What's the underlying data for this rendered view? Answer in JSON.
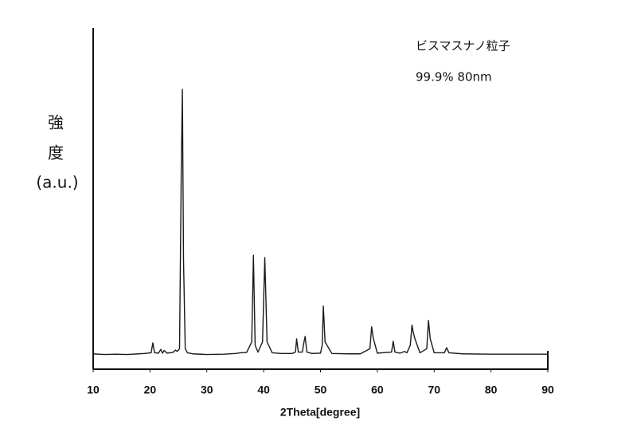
{
  "chart_data": {
    "type": "line",
    "ylabel": [
      "強",
      "度",
      "(a.u.)"
    ],
    "xlabel": "2Theta[degree]",
    "annotation": [
      "ビスマスナノ粒子",
      "99.9% 80nm"
    ],
    "color": "#1a1a1a",
    "xlim": [
      10,
      90
    ],
    "xticks": [
      10,
      20,
      30,
      40,
      50,
      60,
      70,
      80,
      90
    ],
    "ylim": [
      0,
      100
    ],
    "x": [
      10,
      12,
      14,
      16,
      18,
      19,
      20.2,
      20.5,
      20.8,
      21.5,
      21.9,
      22.2,
      22.5,
      23,
      24,
      24.5,
      24.8,
      25.2,
      25.5,
      25.7,
      25.9,
      26.2,
      26.6,
      27.5,
      30,
      33,
      35,
      36,
      37,
      37.9,
      38.2,
      38.5,
      39,
      39.8,
      40.2,
      40.6,
      41.5,
      43,
      45,
      45.6,
      45.8,
      46.1,
      46.8,
      47.1,
      47.3,
      47.6,
      48.5,
      50,
      50.3,
      50.5,
      50.8,
      52,
      55,
      57,
      58.7,
      59,
      59.3,
      60,
      62.5,
      62.8,
      63.1,
      64,
      64.8,
      65.2,
      65.8,
      66.1,
      66.3,
      66.6,
      67.5,
      68.7,
      69,
      69.3,
      70,
      71.8,
      72.2,
      72.6,
      75,
      80,
      85,
      90
    ],
    "values": [
      4.5,
      4.3,
      4.4,
      4.3,
      4.5,
      4.6,
      4.8,
      7.7,
      4.8,
      4.7,
      5.8,
      4.7,
      5.5,
      4.7,
      4.9,
      5.6,
      5.2,
      6,
      58,
      82,
      32,
      6,
      4.8,
      4.5,
      4.3,
      4.4,
      4.6,
      4.8,
      4.9,
      8,
      33.4,
      7,
      5,
      8,
      32.7,
      8,
      4.8,
      4.6,
      4.6,
      5,
      8.9,
      5,
      5,
      8,
      9.6,
      5,
      4.6,
      4.7,
      7,
      18.5,
      8,
      4.6,
      4.5,
      4.5,
      6,
      12.4,
      9,
      4.7,
      5,
      8.2,
      5,
      4.7,
      5.2,
      4.8,
      7,
      12.9,
      11,
      9,
      4.8,
      6,
      14.3,
      9,
      4.8,
      4.8,
      6.3,
      4.8,
      4.5,
      4.4,
      4.4,
      4.4
    ]
  }
}
